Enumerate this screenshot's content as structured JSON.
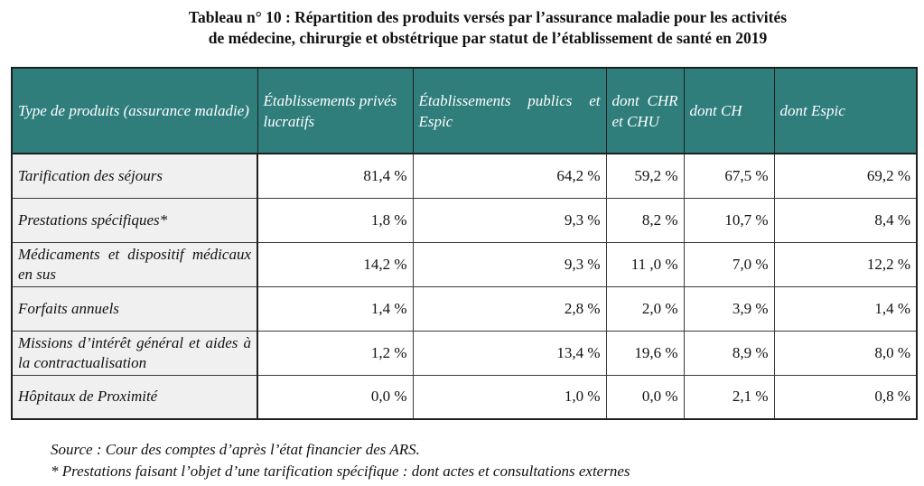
{
  "title": {
    "line1": "Tableau n° 10 :  Répartition des produits versés par l’assurance maladie pour les activités",
    "line2": "de médecine, chirurgie et obstétrique par statut de l’établissement de santé en 2019"
  },
  "table": {
    "headers": [
      "Type de produits (assurance maladie)",
      "Établissements privés lucratifs",
      "Établissements publics et Espic",
      "dont CHR et CHU",
      "dont CH",
      "dont Espic"
    ],
    "rows": [
      {
        "label": "Tarification des séjours",
        "values": [
          "81,4 %",
          "64,2 %",
          "59,2 %",
          "67,5 %",
          "69,2 %"
        ]
      },
      {
        "label": "Prestations spécifiques*",
        "values": [
          "1,8 %",
          "9,3 %",
          "8,2 %",
          "10,7 %",
          "8,4 %"
        ]
      },
      {
        "label": "Médicaments et dispositif médicaux en sus",
        "values": [
          "14,2 %",
          "9,3 %",
          "11 ,0 %",
          "7,0 %",
          "12,2 %"
        ]
      },
      {
        "label": "Forfaits annuels",
        "values": [
          "1,4 %",
          "2,8 %",
          "2,0 %",
          "3,9 %",
          "1,4 %"
        ]
      },
      {
        "label": "Missions d’intérêt général et aides à la contractualisation",
        "values": [
          "1,2 %",
          "13,4 %",
          "19,6 %",
          "8,9 %",
          "8,0 %"
        ]
      },
      {
        "label": "Hôpitaux de Proximité",
        "values": [
          "0,0 %",
          "1,0 %",
          "0,0 %",
          "2,1 %",
          "0,8 %"
        ]
      }
    ]
  },
  "notes": {
    "source": "Source : Cour des comptes d’après l’état financier des ARS.",
    "footnote": "* Prestations faisant l’objet d’une tarification spécifique : dont actes et consultations externes"
  },
  "colors": {
    "header_bg": "#2f7e7c",
    "header_text": "#ffffff",
    "label_bg": "#f0f0f0"
  }
}
